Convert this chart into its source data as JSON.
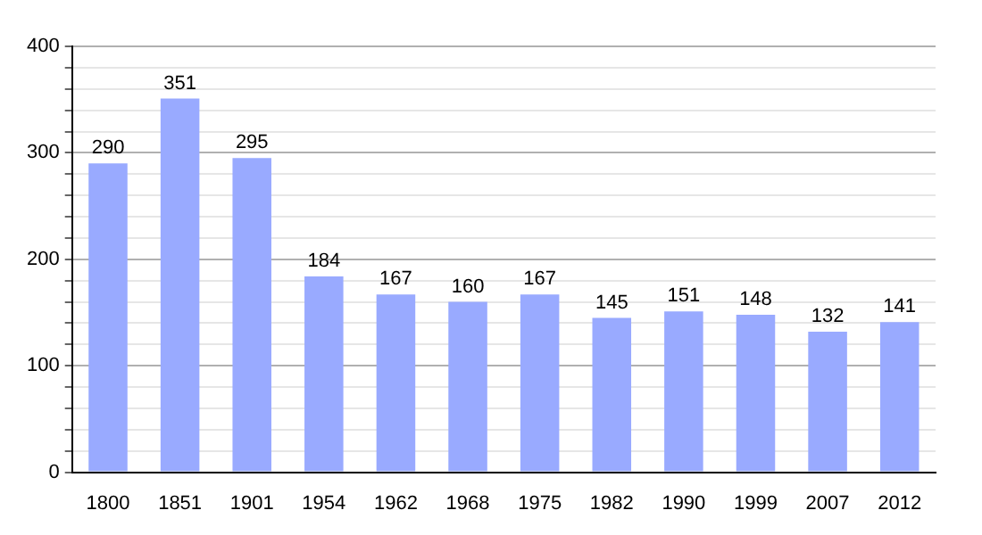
{
  "chart_data": {
    "type": "bar",
    "categories": [
      "1800",
      "1851",
      "1901",
      "1954",
      "1962",
      "1968",
      "1975",
      "1982",
      "1990",
      "1999",
      "2007",
      "2012"
    ],
    "values": [
      290,
      351,
      295,
      184,
      167,
      160,
      167,
      145,
      151,
      148,
      132,
      141
    ],
    "color": "#99aaff",
    "ylim": [
      0,
      400
    ],
    "yticks": [
      0,
      {
        "value": 20,
        "label": null
      },
      {
        "value": 40,
        "label": null
      },
      {
        "value": 60,
        "label": null
      },
      {
        "value": 80,
        "label": null
      },
      100,
      {
        "value": 120,
        "label": null
      },
      {
        "value": 140,
        "label": null
      },
      {
        "value": 160,
        "label": null
      },
      {
        "value": 180,
        "label": null
      },
      200,
      {
        "value": 220,
        "label": null
      },
      {
        "value": 240,
        "label": null
      },
      {
        "value": 260,
        "label": null
      },
      {
        "value": 280,
        "label": null
      },
      300,
      {
        "value": 320,
        "label": null
      },
      {
        "value": 340,
        "label": null
      },
      {
        "value": 360,
        "label": null
      },
      {
        "value": 380,
        "label": null
      },
      400
    ],
    "grid": "y",
    "data_labels": true,
    "legend": false
  }
}
